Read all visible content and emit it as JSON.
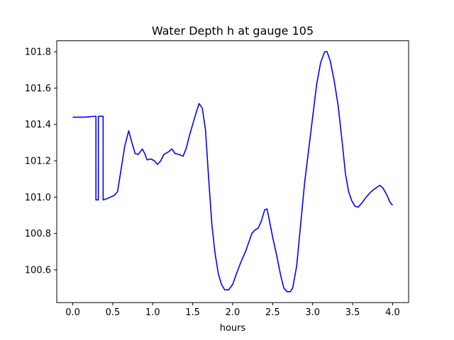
{
  "chart_data": {
    "type": "line",
    "title": "Water Depth h at gauge 105",
    "xlabel": "hours",
    "ylabel": "",
    "xlim": [
      -0.2,
      4.2
    ],
    "ylim": [
      100.42,
      101.86
    ],
    "xticks": [
      0.0,
      0.5,
      1.0,
      1.5,
      2.0,
      2.5,
      3.0,
      3.5,
      4.0
    ],
    "xtick_labels": [
      "0.0",
      "0.5",
      "1.0",
      "1.5",
      "2.0",
      "2.5",
      "3.0",
      "3.5",
      "4.0"
    ],
    "yticks": [
      100.6,
      100.8,
      101.0,
      101.2,
      101.4,
      101.6,
      101.8
    ],
    "ytick_labels": [
      "100.6",
      "100.8",
      "101.0",
      "101.2",
      "101.4",
      "101.6",
      "101.8"
    ],
    "grid": false,
    "series": [
      {
        "color": "#0000ff",
        "points": [
          [
            0.0,
            101.44
          ],
          [
            0.15,
            101.44
          ],
          [
            0.28,
            101.445
          ],
          [
            0.29,
            101.445
          ],
          [
            0.29,
            100.985
          ],
          [
            0.32,
            100.985
          ],
          [
            0.32,
            101.445
          ],
          [
            0.38,
            101.445
          ],
          [
            0.38,
            100.985
          ],
          [
            0.42,
            100.99
          ],
          [
            0.47,
            101.0
          ],
          [
            0.52,
            101.01
          ],
          [
            0.56,
            101.03
          ],
          [
            0.6,
            101.14
          ],
          [
            0.65,
            101.28
          ],
          [
            0.7,
            101.365
          ],
          [
            0.74,
            101.3
          ],
          [
            0.78,
            101.24
          ],
          [
            0.82,
            101.235
          ],
          [
            0.87,
            101.265
          ],
          [
            0.9,
            101.24
          ],
          [
            0.93,
            101.205
          ],
          [
            0.98,
            101.21
          ],
          [
            1.02,
            101.2
          ],
          [
            1.06,
            101.18
          ],
          [
            1.1,
            101.2
          ],
          [
            1.14,
            101.235
          ],
          [
            1.2,
            101.25
          ],
          [
            1.24,
            101.265
          ],
          [
            1.28,
            101.24
          ],
          [
            1.33,
            101.235
          ],
          [
            1.38,
            101.225
          ],
          [
            1.42,
            101.27
          ],
          [
            1.46,
            101.34
          ],
          [
            1.5,
            101.4
          ],
          [
            1.54,
            101.46
          ],
          [
            1.58,
            101.515
          ],
          [
            1.62,
            101.49
          ],
          [
            1.66,
            101.37
          ],
          [
            1.7,
            101.1
          ],
          [
            1.74,
            100.85
          ],
          [
            1.78,
            100.69
          ],
          [
            1.82,
            100.58
          ],
          [
            1.86,
            100.52
          ],
          [
            1.9,
            100.49
          ],
          [
            1.95,
            100.49
          ],
          [
            2.0,
            100.52
          ],
          [
            2.04,
            100.57
          ],
          [
            2.1,
            100.64
          ],
          [
            2.16,
            100.7
          ],
          [
            2.2,
            100.75
          ],
          [
            2.24,
            100.8
          ],
          [
            2.28,
            100.82
          ],
          [
            2.32,
            100.83
          ],
          [
            2.36,
            100.87
          ],
          [
            2.4,
            100.93
          ],
          [
            2.43,
            100.935
          ],
          [
            2.46,
            100.87
          ],
          [
            2.5,
            100.78
          ],
          [
            2.55,
            100.68
          ],
          [
            2.6,
            100.57
          ],
          [
            2.64,
            100.5
          ],
          [
            2.68,
            100.48
          ],
          [
            2.72,
            100.48
          ],
          [
            2.75,
            100.5
          ],
          [
            2.8,
            100.62
          ],
          [
            2.85,
            100.85
          ],
          [
            2.9,
            101.08
          ],
          [
            2.95,
            101.26
          ],
          [
            3.0,
            101.44
          ],
          [
            3.05,
            101.62
          ],
          [
            3.1,
            101.74
          ],
          [
            3.15,
            101.8
          ],
          [
            3.18,
            101.8
          ],
          [
            3.22,
            101.75
          ],
          [
            3.27,
            101.64
          ],
          [
            3.32,
            101.5
          ],
          [
            3.37,
            101.3
          ],
          [
            3.41,
            101.13
          ],
          [
            3.45,
            101.03
          ],
          [
            3.49,
            100.98
          ],
          [
            3.53,
            100.95
          ],
          [
            3.57,
            100.945
          ],
          [
            3.62,
            100.97
          ],
          [
            3.67,
            101.0
          ],
          [
            3.73,
            101.03
          ],
          [
            3.79,
            101.05
          ],
          [
            3.84,
            101.065
          ],
          [
            3.88,
            101.05
          ],
          [
            3.93,
            101.01
          ],
          [
            3.97,
            100.97
          ],
          [
            4.0,
            100.955
          ]
        ]
      }
    ]
  }
}
